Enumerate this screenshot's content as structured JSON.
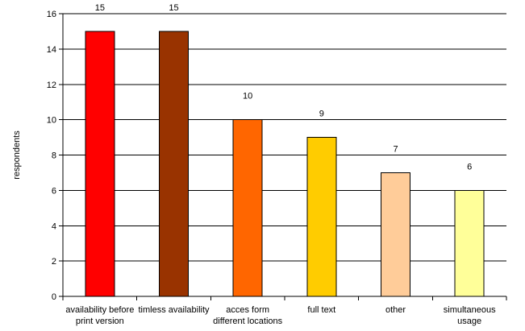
{
  "chart_data": {
    "type": "bar",
    "title": "",
    "xlabel": "",
    "ylabel": "respondents",
    "ylim": [
      0,
      16
    ],
    "ytick_step": 2,
    "grid": "horizontal",
    "categories": [
      [
        "availability before",
        "print version"
      ],
      [
        "timless availability"
      ],
      [
        "acces form",
        "different locations"
      ],
      [
        "full text"
      ],
      [
        "other"
      ],
      [
        "simultaneous",
        "usage"
      ]
    ],
    "values": [
      15,
      15,
      10,
      9,
      7,
      6
    ],
    "colors": [
      "#ff0000",
      "#993300",
      "#ff6600",
      "#ffcc00",
      "#ffcc99",
      "#ffff99"
    ],
    "data_labels": [
      "15",
      "15",
      "10",
      "9",
      "7",
      "6"
    ]
  }
}
